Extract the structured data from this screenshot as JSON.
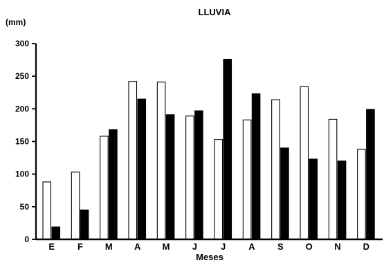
{
  "chart_data": {
    "type": "bar",
    "title": "LLUVIA",
    "ylabel": "(mm)",
    "xlabel": "Meses",
    "categories": [
      "E",
      "F",
      "M",
      "A",
      "M",
      "J",
      "J",
      "A",
      "S",
      "O",
      "N",
      "D"
    ],
    "series": [
      {
        "fill": "#ffffff",
        "values": [
          88,
          103,
          158,
          242,
          241,
          189,
          153,
          183,
          214,
          234,
          184,
          138
        ]
      },
      {
        "fill": "#000000",
        "values": [
          19,
          45,
          168,
          215,
          191,
          197,
          276,
          223,
          140,
          123,
          120,
          199
        ]
      }
    ],
    "ylim": [
      0,
      300
    ],
    "yticks": [
      "0",
      "50",
      "100",
      "150",
      "200",
      "250",
      "300"
    ],
    "grid": false,
    "legend": "none"
  }
}
